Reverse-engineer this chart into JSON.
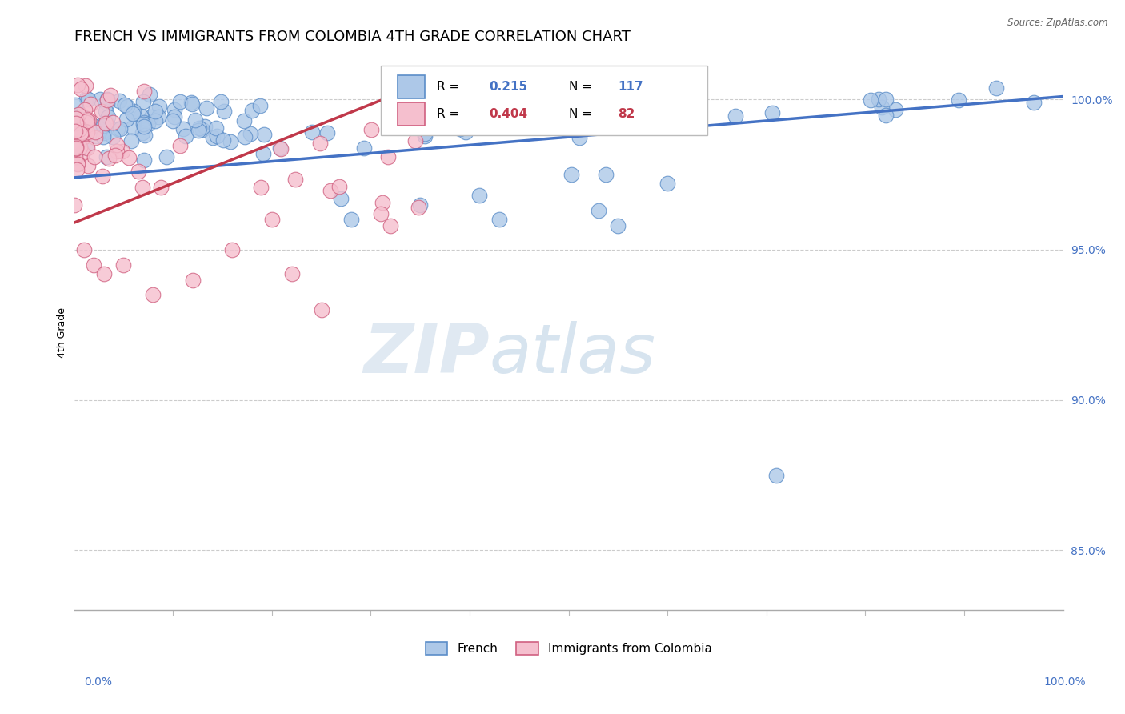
{
  "title": "FRENCH VS IMMIGRANTS FROM COLOMBIA 4TH GRADE CORRELATION CHART",
  "source_text": "Source: ZipAtlas.com",
  "ylabel": "4th Grade",
  "xlim": [
    0.0,
    1.0
  ],
  "ylim": [
    0.83,
    1.015
  ],
  "yticks": [
    0.85,
    0.9,
    0.95,
    1.0
  ],
  "ytick_labels": [
    "85.0%",
    "90.0%",
    "95.0%",
    "100.0%"
  ],
  "blue_R": 0.215,
  "blue_N": 117,
  "pink_R": 0.404,
  "pink_N": 82,
  "blue_color": "#adc8e8",
  "pink_color": "#f5bfce",
  "blue_edge_color": "#5b8dc8",
  "pink_edge_color": "#d06080",
  "blue_line_color": "#4472c4",
  "pink_line_color": "#c0384a",
  "legend_label_blue": "French",
  "legend_label_pink": "Immigrants from Colombia",
  "watermark_zip": "ZIP",
  "watermark_atlas": "atlas",
  "title_fontsize": 13,
  "axis_label_fontsize": 9,
  "tick_fontsize": 10,
  "blue_trend_x0": 0.0,
  "blue_trend_x1": 1.0,
  "blue_trend_y0": 0.974,
  "blue_trend_y1": 1.001,
  "pink_trend_x0": 0.0,
  "pink_trend_x1": 0.32,
  "pink_trend_y0": 0.959,
  "pink_trend_y1": 1.001
}
